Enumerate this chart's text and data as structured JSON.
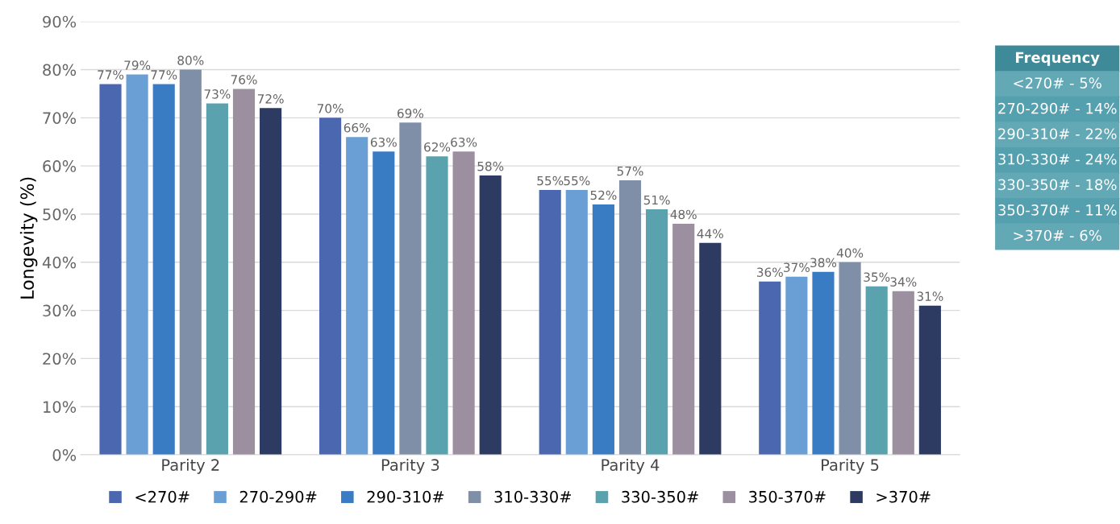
{
  "chart_data": {
    "type": "bar",
    "ylabel": "Longevity (%)",
    "categories": [
      "Parity 2",
      "Parity 3",
      "Parity 4",
      "Parity 5"
    ],
    "series": [
      {
        "name": "<270#",
        "color": "#4a67b0",
        "values": [
          77,
          70,
          55,
          36
        ],
        "value_labels": [
          "77%",
          "70%",
          "55%",
          "36%"
        ]
      },
      {
        "name": "270-290#",
        "color": "#6a9fd6",
        "values": [
          79,
          66,
          55,
          37
        ],
        "value_labels": [
          "79%",
          "66%",
          "55%",
          "37%"
        ]
      },
      {
        "name": "290-310#",
        "color": "#3a7cc4",
        "values": [
          77,
          63,
          52,
          38
        ],
        "value_labels": [
          "77%",
          "63%",
          "52%",
          "38%"
        ]
      },
      {
        "name": "310-330#",
        "color": "#7f8fa8",
        "values": [
          80,
          69,
          57,
          40
        ],
        "value_labels": [
          "80%",
          "69%",
          "57%",
          "40%"
        ]
      },
      {
        "name": "330-350#",
        "color": "#5aa2ad",
        "values": [
          73,
          62,
          51,
          35
        ],
        "value_labels": [
          "73%",
          "62%",
          "51%",
          "35%"
        ]
      },
      {
        "name": "350-370#",
        "color": "#9c8fa0",
        "values": [
          76,
          63,
          48,
          34
        ],
        "value_labels": [
          "76%",
          "63%",
          "48%",
          "34%"
        ]
      },
      {
        "name": ">370#",
        "color": "#2d3a62",
        "values": [
          72,
          58,
          44,
          31
        ],
        "value_labels": [
          "72%",
          "58%",
          "44%",
          "31%"
        ]
      }
    ],
    "ylim": [
      0,
      90
    ],
    "yticks": [
      {
        "value": 0,
        "label": "0%"
      },
      {
        "value": 10,
        "label": "10%"
      },
      {
        "value": 20,
        "label": "20%"
      },
      {
        "value": 30,
        "label": "30%"
      },
      {
        "value": 40,
        "label": "40%"
      },
      {
        "value": 50,
        "label": "50%"
      },
      {
        "value": 60,
        "label": "60%"
      },
      {
        "value": 70,
        "label": "70%"
      },
      {
        "value": 80,
        "label": "80%"
      },
      {
        "value": 90,
        "label": "90%"
      }
    ],
    "grid": "y",
    "legend": "bottom",
    "annotations": [
      "Frequency",
      "<270# - 5%",
      "270-290# - 14%",
      "290-310# - 22%",
      "310-330# - 24%",
      "330-350# - 18%",
      "350-370# - 11%",
      ">370# - 6%"
    ]
  }
}
